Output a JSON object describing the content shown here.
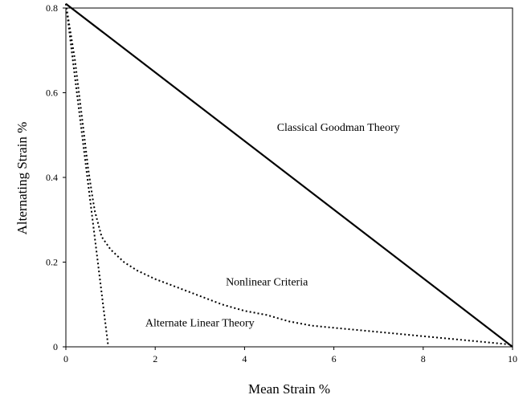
{
  "chart_data": {
    "type": "line",
    "title": "",
    "xlabel": "Mean Strain %",
    "ylabel": "Alternating Strain %",
    "xlim": [
      0,
      10
    ],
    "ylim": [
      0,
      0.8
    ],
    "x_ticks": [
      "0",
      "2",
      "4",
      "6",
      "8",
      "10"
    ],
    "y_ticks": [
      "0",
      "0.2",
      "0.4",
      "0.6",
      "0.8"
    ],
    "grid": false,
    "legend": "none",
    "series": [
      {
        "name": "Classical Goodman Theory",
        "style": "solid",
        "x": [
          0,
          10
        ],
        "y": [
          0.81,
          0
        ]
      },
      {
        "name": "Alternate Linear Theory",
        "style": "dotted",
        "x": [
          0,
          0.95
        ],
        "y": [
          0.81,
          0
        ]
      },
      {
        "name": "Nonlinear Criteria",
        "style": "dotted",
        "x": [
          0,
          0.2,
          0.35,
          0.5,
          0.6,
          0.65,
          0.8,
          1.0,
          1.3,
          1.6,
          2.0,
          2.5,
          3.0,
          3.5,
          4.0,
          4.5,
          5.0,
          5.5,
          6.0,
          7.0,
          8.0,
          9.0,
          10.0
        ],
        "y": [
          0.81,
          0.68,
          0.55,
          0.42,
          0.35,
          0.32,
          0.26,
          0.23,
          0.2,
          0.18,
          0.16,
          0.14,
          0.12,
          0.1,
          0.085,
          0.075,
          0.06,
          0.05,
          0.045,
          0.035,
          0.025,
          0.015,
          0.005
        ]
      }
    ],
    "annotations": [
      {
        "text": "Classical Goodman Theory",
        "x": 6.1,
        "y": 0.51
      },
      {
        "text": "Nonlinear Criteria",
        "x": 4.5,
        "y": 0.145
      },
      {
        "text": "Alternate Linear Theory",
        "x": 3.0,
        "y": 0.048
      }
    ]
  }
}
